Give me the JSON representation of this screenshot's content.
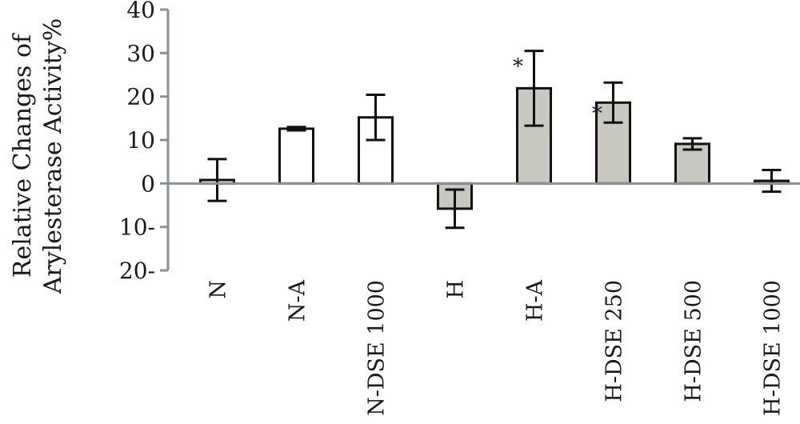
{
  "chart_data": {
    "type": "bar",
    "ylabel_lines": [
      "Relative Changes of",
      "Arylesterase Activity%"
    ],
    "ylim": [
      -20,
      40
    ],
    "yticks": [
      40,
      30,
      20,
      10,
      0,
      -10,
      -20
    ],
    "ytick_labels": [
      "40",
      "30",
      "20",
      "10",
      "0",
      "10-",
      "20-"
    ],
    "categories": [
      "N",
      "N-A",
      "N-DSE 1000",
      "H",
      "H-A",
      "H-DSE 250",
      "H-DSE 500",
      "H-DSE 1000"
    ],
    "values": [
      0.8,
      12.6,
      15.2,
      -5.8,
      21.9,
      18.6,
      9.1,
      0.6
    ],
    "errors": [
      4.8,
      0.4,
      5.2,
      4.4,
      8.6,
      4.6,
      1.3,
      2.5
    ],
    "significance": [
      "",
      "",
      "",
      "",
      "*",
      "*",
      "",
      ""
    ],
    "bar_fills": [
      "#ffffff",
      "#ffffff",
      "#ffffff",
      "#c8c8c0",
      "#c8c8c0",
      "#c8c8c0",
      "#c8c8c0",
      "#c8c8c0"
    ],
    "colors": {
      "axis": "#8a9199",
      "bar_stroke": "#111111",
      "error": "#111111",
      "text": "#1a1a1a"
    },
    "grid": false,
    "legend": "none"
  }
}
